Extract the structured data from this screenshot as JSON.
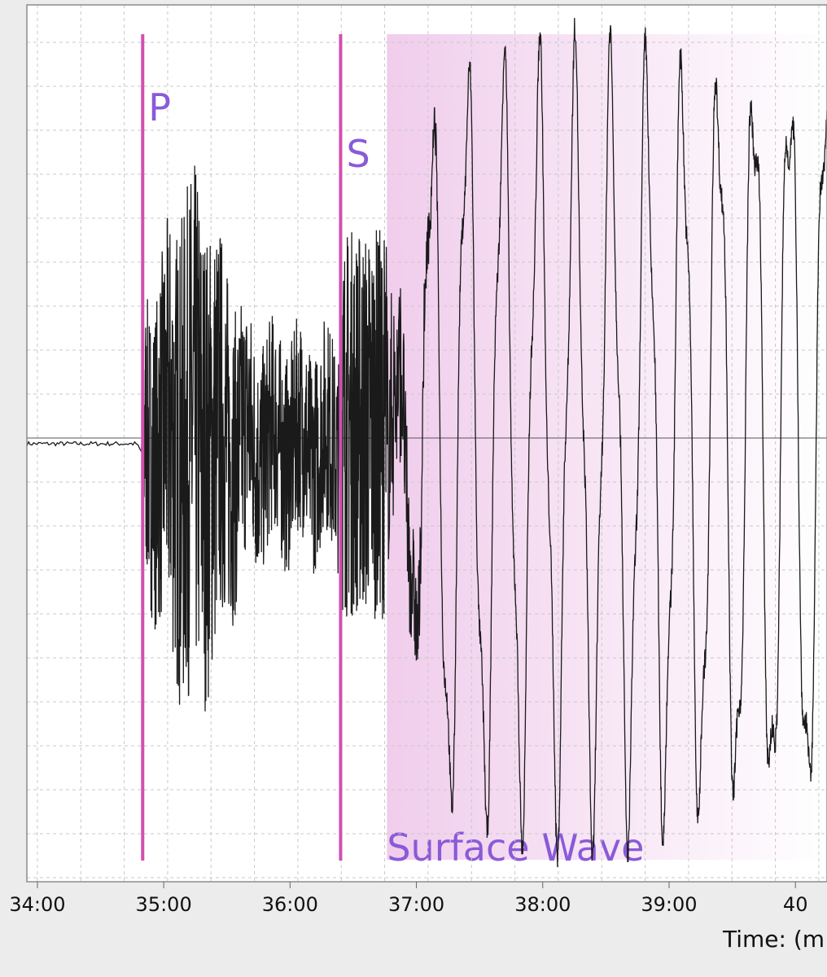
{
  "chart_data": {
    "type": "line",
    "title": "",
    "xlabel": "Time: (m",
    "ylabel": "",
    "xlim": [
      "33:55",
      "40:15"
    ],
    "ylim": [
      -1.0,
      1.0
    ],
    "grid": true,
    "x_tick_labels": [
      "34:00",
      "35:00",
      "36:00",
      "37:00",
      "38:00",
      "39:00",
      "40"
    ],
    "phase_markers": [
      {
        "label": "P",
        "time": "34:50"
      },
      {
        "label": "S",
        "time": "36:24"
      }
    ],
    "regions": [
      {
        "label": "Surface Wave",
        "start": "36:46",
        "end": "40:15"
      }
    ],
    "series": [
      {
        "segments": [
          {
            "start": "33:55",
            "end": "34:50",
            "kind": "quiet",
            "amplitude": 0.005
          },
          {
            "start": "34:50",
            "end": "36:24",
            "kind": "p-coda",
            "amplitude": 0.45
          },
          {
            "start": "36:24",
            "end": "36:46",
            "kind": "s-coda",
            "amplitude": 0.55
          },
          {
            "start": "36:46",
            "end": "40:15",
            "kind": "surface",
            "amplitude": 0.85
          }
        ]
      }
    ],
    "colors": {
      "trace": "#1a1a1a",
      "marker": "#d14fb0",
      "label": "#8a5ad8",
      "region": "#f3d6ef",
      "grid": "#c8c8c8",
      "zero_line": "#555555"
    }
  }
}
